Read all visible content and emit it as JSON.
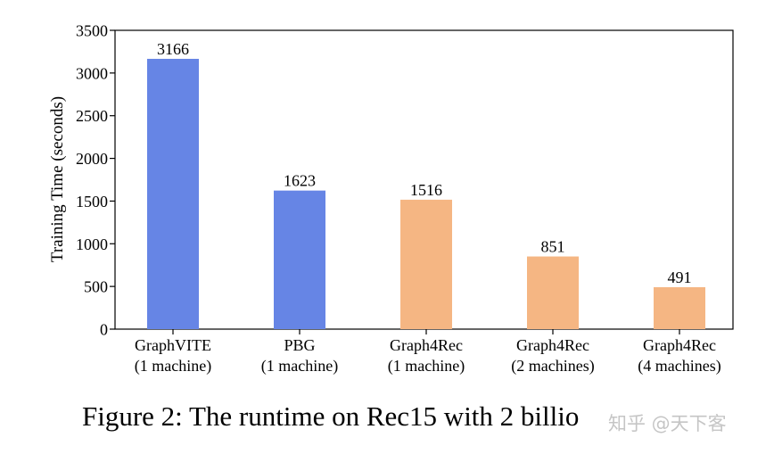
{
  "chart_data": {
    "type": "bar",
    "categories": [
      [
        "GraphVITE",
        "(1 machine)"
      ],
      [
        "PBG",
        "(1 machine)"
      ],
      [
        "Graph4Rec",
        "(1 machine)"
      ],
      [
        "Graph4Rec",
        "(2 machines)"
      ],
      [
        "Graph4Rec",
        "(4 machines)"
      ]
    ],
    "values": [
      3166,
      1623,
      1516,
      851,
      491
    ],
    "data_labels": [
      "3166",
      "1623",
      "1516",
      "851",
      "491"
    ],
    "bar_colors": [
      "#6685e5",
      "#6685e5",
      "#f5b683",
      "#f5b683",
      "#f5b683"
    ],
    "ylabel": "Training Time (seconds)",
    "xlabel": "",
    "ylim": [
      0,
      3500
    ],
    "yticks": [
      0,
      500,
      1000,
      1500,
      2000,
      2500,
      3000,
      3500
    ],
    "grid": false,
    "legend": "none"
  },
  "caption": "Figure 2: The runtime on Rec15 with 2 billio",
  "watermark": "知乎 @天下客"
}
